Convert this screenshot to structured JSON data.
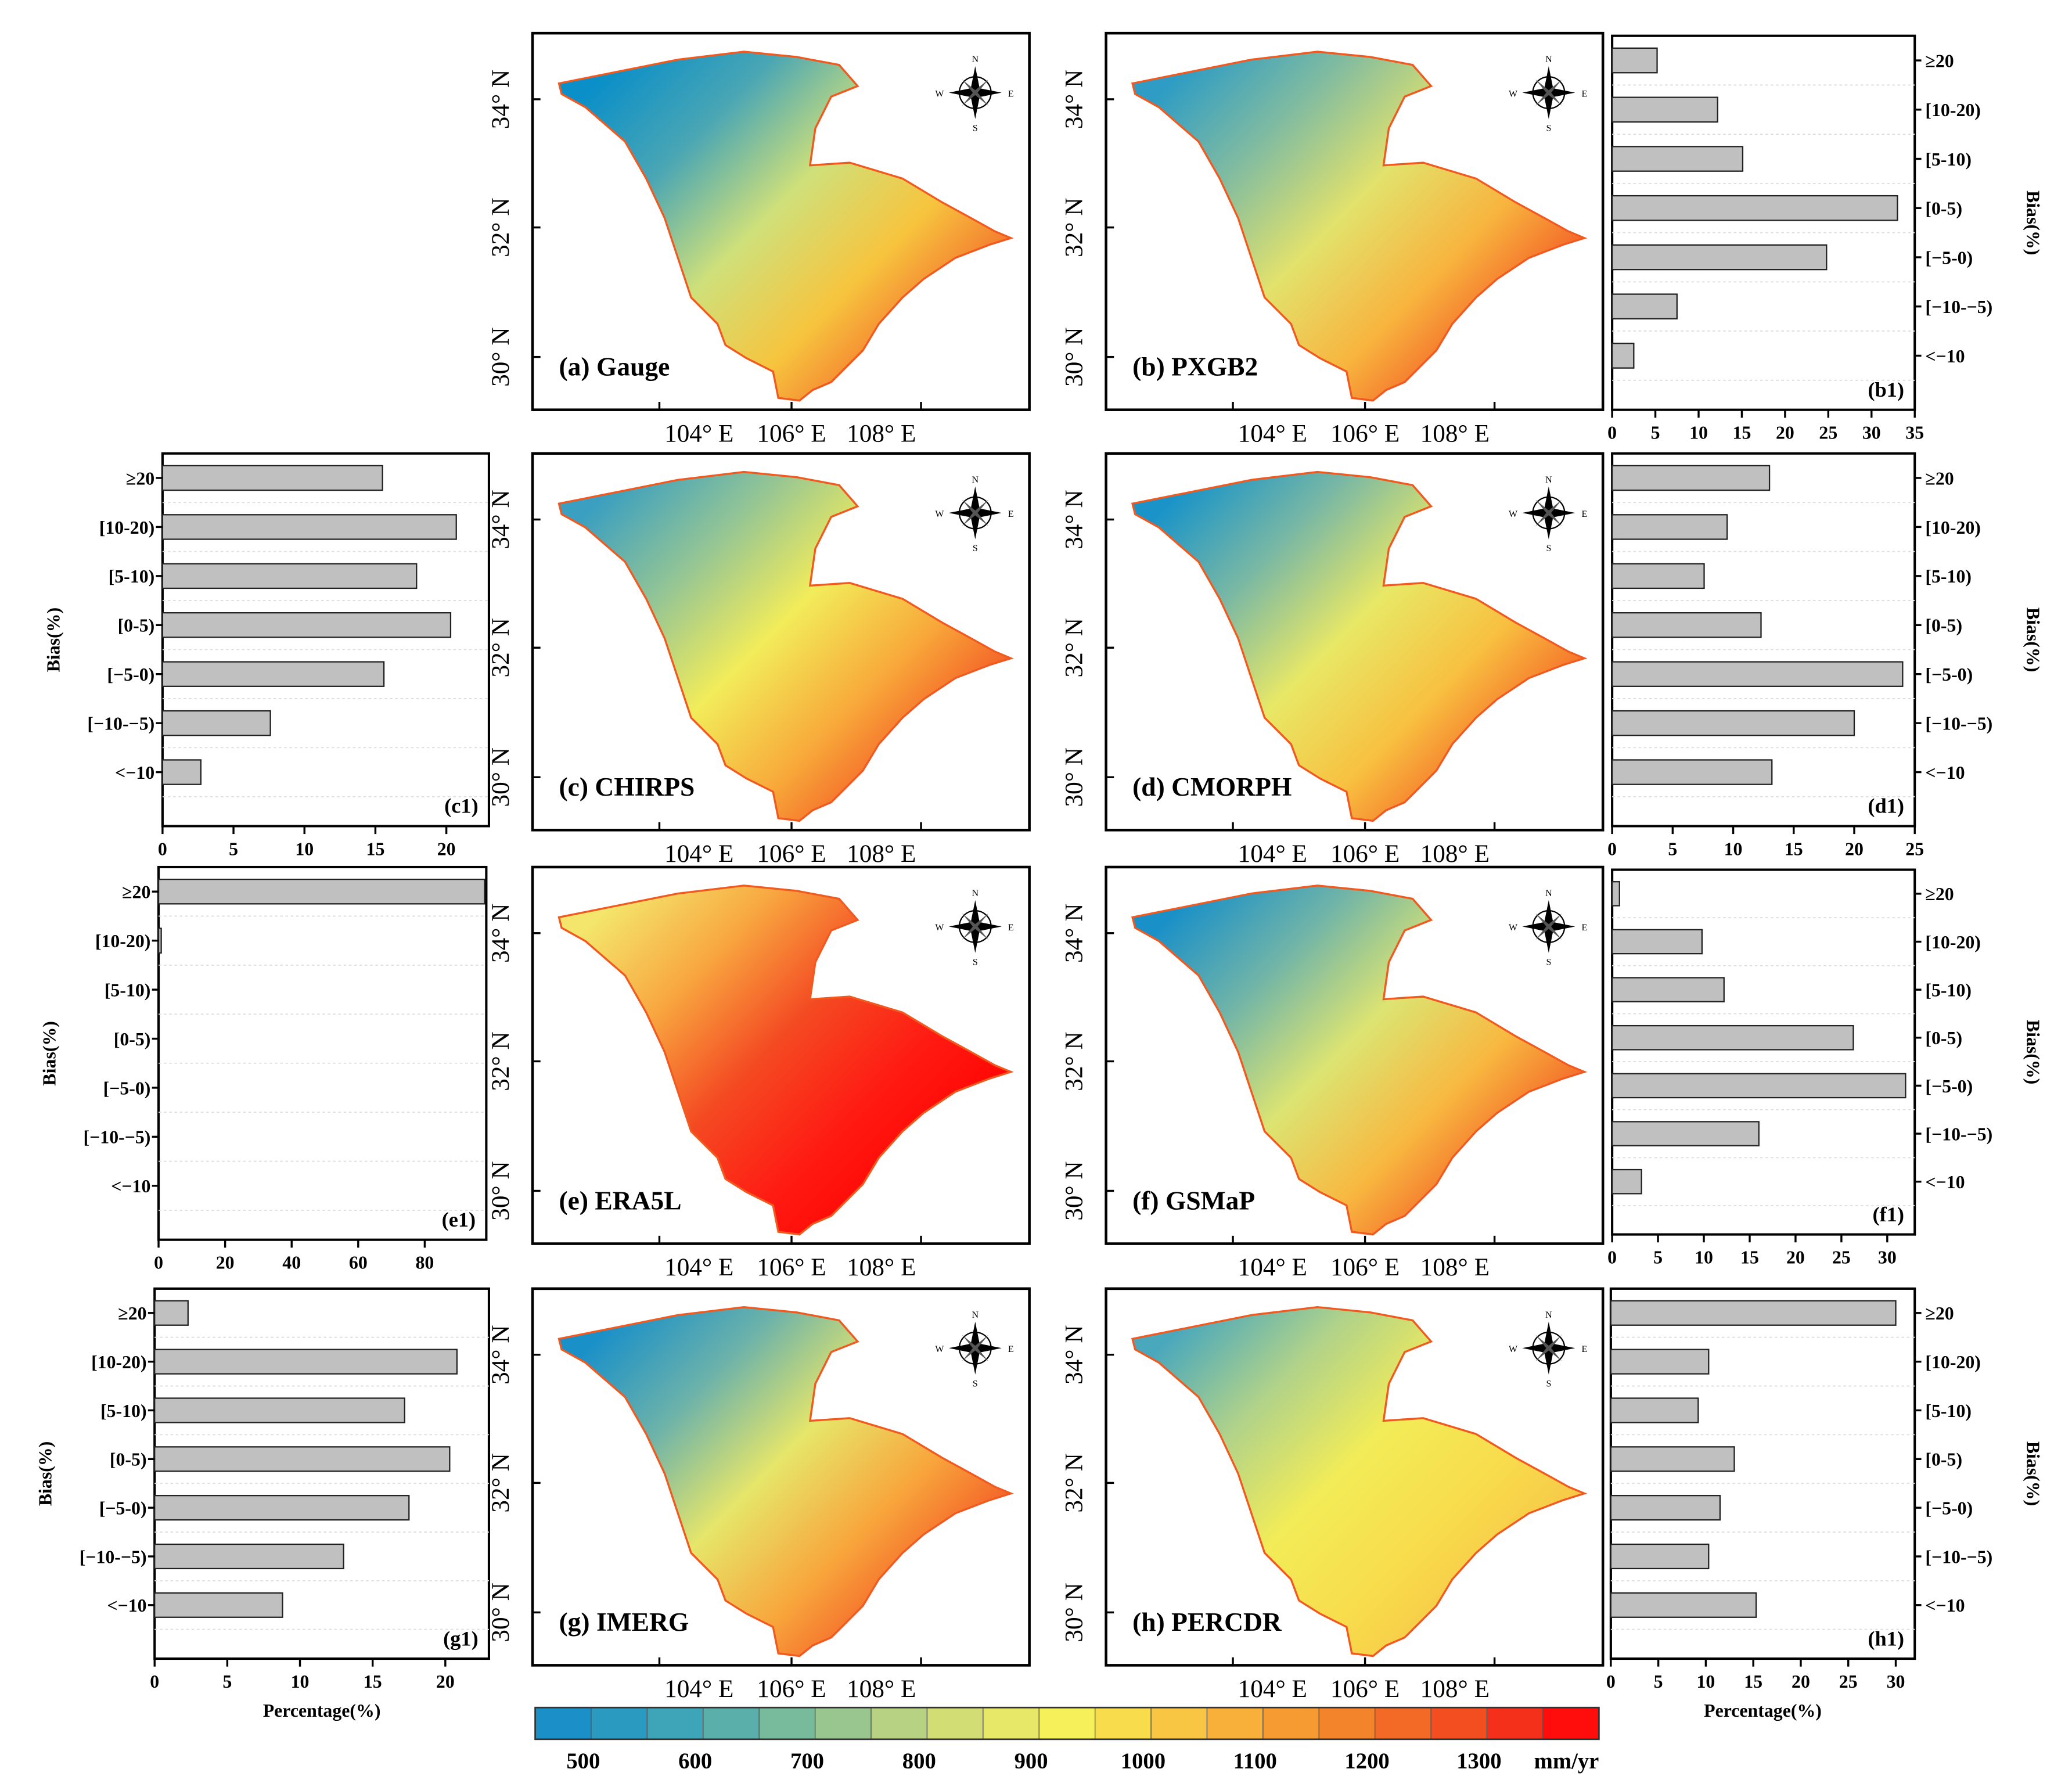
{
  "chart_data": {
    "type": "bar",
    "title": "",
    "maps": [
      {
        "id": "a",
        "label": "(a) Gauge",
        "colors": [
          "#0a8fc8",
          "#4aa6b4",
          "#cfe07a",
          "#f7c43e",
          "#f2622a"
        ]
      },
      {
        "id": "b",
        "label": "(b) PXGB2",
        "colors": [
          "#2e9cc4",
          "#82bca0",
          "#e2e26c",
          "#f8b43e",
          "#f24e22"
        ]
      },
      {
        "id": "c",
        "label": "(c) CHIRPS",
        "colors": [
          "#3a9fc0",
          "#92c496",
          "#f2ec5a",
          "#f8aa3a",
          "#f24a22"
        ]
      },
      {
        "id": "d",
        "label": "(d) CMORPH",
        "colors": [
          "#1a94c8",
          "#7ab8a4",
          "#e8e866",
          "#f8c040",
          "#f45a24"
        ]
      },
      {
        "id": "e",
        "label": "(e) ERA5L",
        "colors": [
          "#f4e66c",
          "#f8a840",
          "#f44a22",
          "#ff1a12",
          "#ff0000"
        ]
      },
      {
        "id": "f",
        "label": "(f) GSMaP",
        "colors": [
          "#1a90c8",
          "#70b4a8",
          "#dce472",
          "#f8b840",
          "#f25424"
        ]
      },
      {
        "id": "g",
        "label": "(g) IMERG",
        "colors": [
          "#1a90c8",
          "#6cb2aa",
          "#e6e66a",
          "#f8a63c",
          "#f24e22"
        ]
      },
      {
        "id": "h",
        "label": "(h) PERCDR",
        "colors": [
          "#4aa8bc",
          "#b0d28a",
          "#f2ec58",
          "#f8dc4c",
          "#f6c246"
        ]
      }
    ],
    "lat_ticks": [
      "34° N",
      "32° N",
      "30° N"
    ],
    "lon_ticks": [
      "104° E",
      "106° E",
      "108° E"
    ],
    "compass": {
      "n": "N",
      "s": "S",
      "e": "E",
      "w": "W"
    },
    "bar_categories": [
      "≥20",
      "[10-20)",
      "[5-10)",
      "[0-5)",
      "[−5-0)",
      "[−10-−5)",
      "<−10"
    ],
    "ylabel": "Bias(%)",
    "xlabel": "Percentage(%)",
    "bar_panels": [
      {
        "id": "b1",
        "label": "(b1)",
        "values": [
          5.2,
          12.2,
          15.1,
          33.0,
          24.8,
          7.5,
          2.5
        ],
        "xlim": [
          0,
          35
        ],
        "ticks": [
          "0",
          "5",
          "10",
          "15",
          "20",
          "25",
          "30",
          "35"
        ],
        "tick_values": [
          0,
          5,
          10,
          15,
          20,
          25,
          30,
          35
        ]
      },
      {
        "id": "c1",
        "label": "(c1)",
        "values": [
          15.5,
          20.7,
          17.9,
          20.3,
          15.6,
          7.6,
          2.7
        ],
        "xlim": [
          0,
          23
        ],
        "ticks": [
          "0",
          "5",
          "10",
          "15",
          "20"
        ],
        "tick_values": [
          0,
          5,
          10,
          15,
          20
        ]
      },
      {
        "id": "d1",
        "label": "(d1)",
        "values": [
          13.0,
          9.5,
          7.6,
          12.3,
          24.0,
          20.0,
          13.2
        ],
        "xlim": [
          0,
          25
        ],
        "ticks": [
          "0",
          "5",
          "10",
          "15",
          "20",
          "25"
        ],
        "tick_values": [
          0,
          5,
          10,
          15,
          20,
          25
        ]
      },
      {
        "id": "e1",
        "label": "(e1)",
        "values": [
          98.0,
          0.8,
          0,
          0,
          0,
          0,
          0
        ],
        "xlim": [
          0,
          98.5
        ],
        "ticks": [
          "0",
          "20",
          "40",
          "60",
          "80"
        ],
        "tick_values": [
          0,
          20,
          40,
          60,
          80
        ]
      },
      {
        "id": "f1",
        "label": "(f1)",
        "values": [
          0.8,
          9.8,
          12.2,
          26.3,
          32.0,
          16.0,
          3.2
        ],
        "xlim": [
          0,
          33
        ],
        "ticks": [
          "0",
          "5",
          "10",
          "15",
          "20",
          "25",
          "30"
        ],
        "tick_values": [
          0,
          5,
          10,
          15,
          20,
          25,
          30
        ]
      },
      {
        "id": "g1",
        "label": "(g1)",
        "values": [
          2.3,
          20.8,
          17.2,
          20.3,
          17.5,
          13.0,
          8.8
        ],
        "xlim": [
          0,
          23
        ],
        "ticks": [
          "0",
          "5",
          "10",
          "15",
          "20"
        ],
        "tick_values": [
          0,
          5,
          10,
          15,
          20
        ]
      },
      {
        "id": "h1",
        "label": "(h1)",
        "values": [
          30.0,
          10.3,
          9.2,
          13.0,
          11.5,
          10.3,
          15.3
        ],
        "xlim": [
          0,
          32
        ],
        "ticks": [
          "0",
          "5",
          "10",
          "15",
          "20",
          "25",
          "30"
        ],
        "tick_values": [
          0,
          5,
          10,
          15,
          20,
          25,
          30
        ]
      }
    ],
    "colorbar": {
      "unit": "mm/yr",
      "range": [
        450,
        1400
      ],
      "step": 50,
      "labels": [
        "500",
        "600",
        "700",
        "800",
        "900",
        "1000",
        "1100",
        "1200",
        "1300"
      ],
      "label_values": [
        500,
        600,
        700,
        800,
        900,
        1000,
        1100,
        1200,
        1300
      ],
      "colors": [
        "#1a8fc8",
        "#2a9ac0",
        "#3ea4b8",
        "#5aafab",
        "#78ba9c",
        "#98c68e",
        "#b6d282",
        "#d2de74",
        "#e8e868",
        "#f6f05a",
        "#f8dc4c",
        "#f8c642",
        "#f8b03a",
        "#f69a32",
        "#f4842c",
        "#f26a26",
        "#f24e20",
        "#f4301a",
        "#ff0c0c"
      ]
    }
  }
}
